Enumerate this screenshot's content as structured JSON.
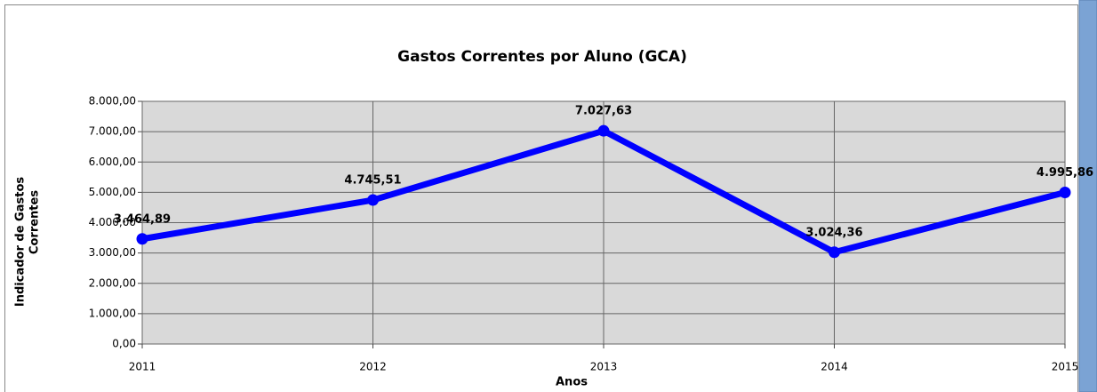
{
  "chart_data": {
    "type": "line",
    "title": "Gastos Correntes por Aluno (GCA)",
    "xlabel": "Anos",
    "ylabel": [
      "Indicador de Gastos",
      "Correntes"
    ],
    "x": [
      2011,
      2012,
      2013,
      2014,
      2015
    ],
    "series": [
      {
        "name": "GCA",
        "color": "#0000ff",
        "values": [
          3464.89,
          4745.51,
          7027.63,
          3024.36,
          4995.86
        ],
        "value_labels": [
          "3.464,89",
          "4.745,51",
          "7.027,63",
          "3.024,36",
          "4.995,86"
        ]
      }
    ],
    "xlim": [
      2011,
      2015
    ],
    "xticks": [
      2011,
      2012,
      2013,
      2014,
      2015
    ],
    "ylim": [
      0,
      8000
    ],
    "yticks": [
      {
        "value": 0,
        "label": "0,00"
      },
      {
        "value": 1000,
        "label": "1.000,00"
      },
      {
        "value": 2000,
        "label": "2.000,00"
      },
      {
        "value": 3000,
        "label": "3.000,00"
      },
      {
        "value": 4000,
        "label": "4.000,00"
      },
      {
        "value": 5000,
        "label": "5.000,00"
      },
      {
        "value": 6000,
        "label": "6.000,00"
      },
      {
        "value": 7000,
        "label": "7.000,00"
      },
      {
        "value": 8000,
        "label": "8.000,00"
      }
    ],
    "grid": true
  }
}
